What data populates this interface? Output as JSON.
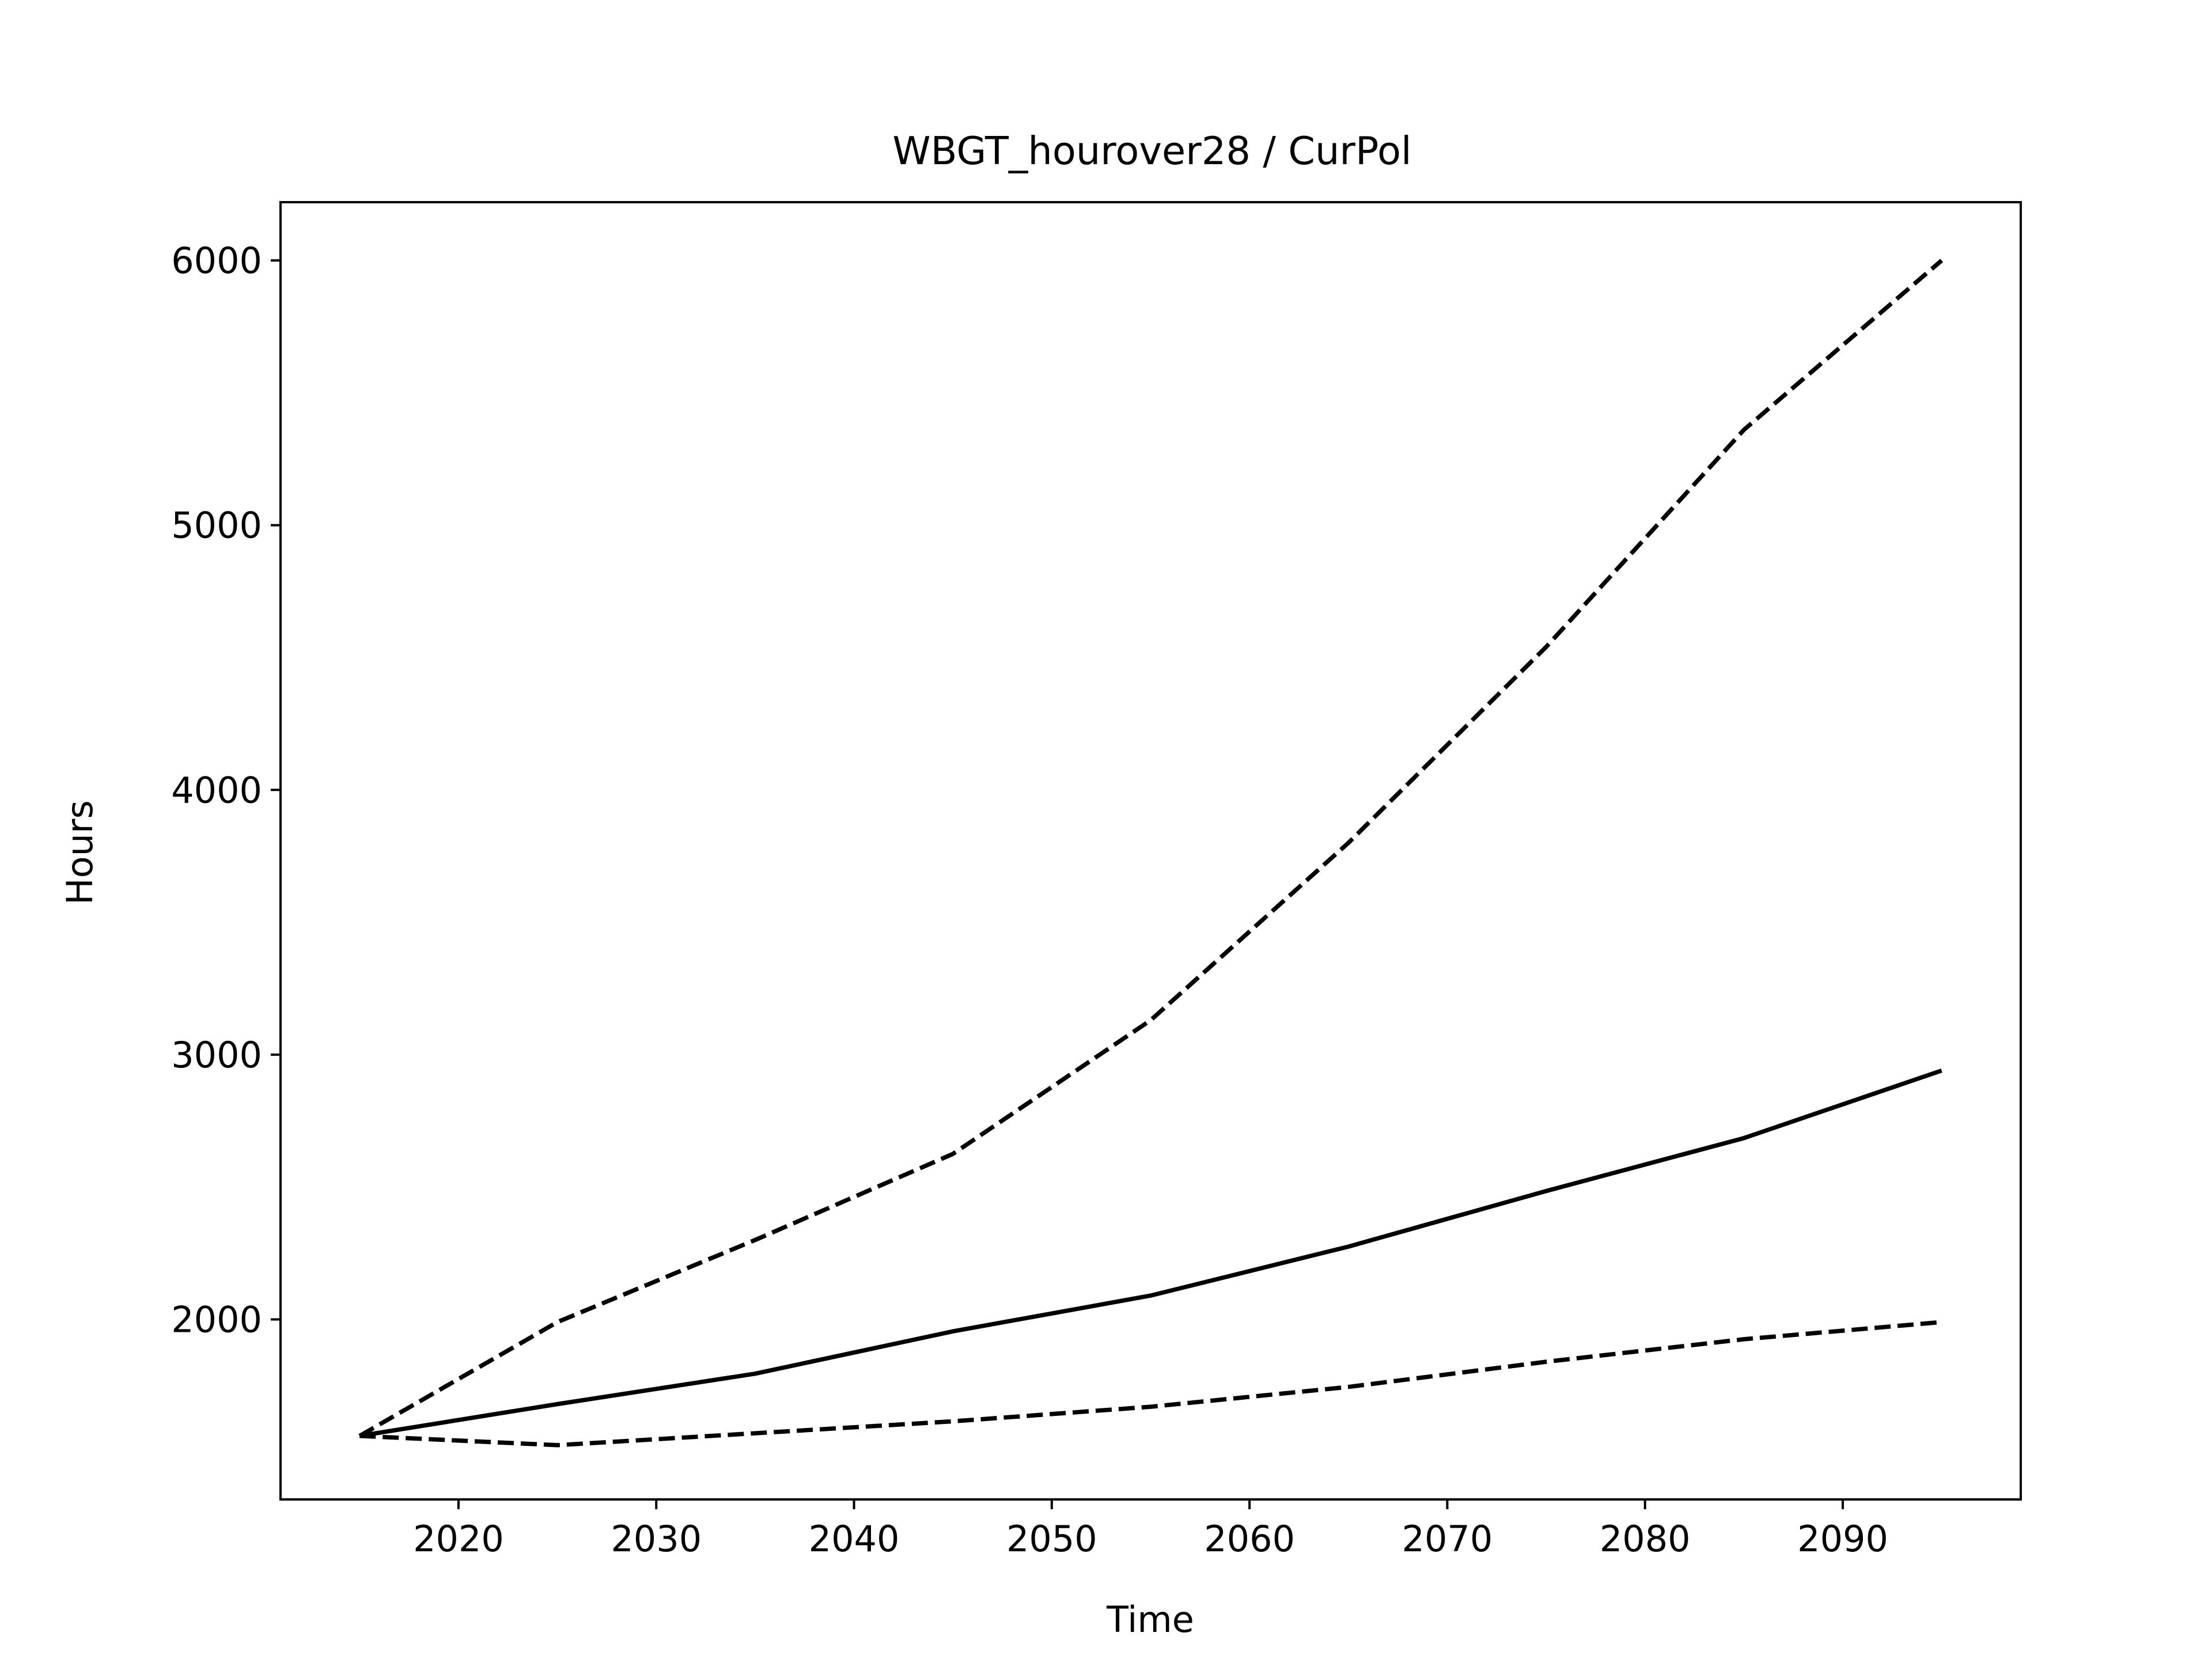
{
  "chart_data": {
    "type": "line",
    "title": "WBGT_hourover28 / CurPol",
    "xlabel": "Time",
    "ylabel": "Hours",
    "xlim": [
      2011,
      2099
    ],
    "ylim": [
      1320,
      6220
    ],
    "x_ticks": [
      2020,
      2030,
      2040,
      2050,
      2060,
      2070,
      2080,
      2090
    ],
    "y_ticks": [
      2000,
      3000,
      4000,
      5000,
      6000
    ],
    "grid": false,
    "x": [
      2015,
      2025,
      2035,
      2045,
      2055,
      2065,
      2075,
      2085,
      2095
    ],
    "series": [
      {
        "style": "solid",
        "color": "#000000",
        "values": [
          1560,
          1680,
          1795,
          1955,
          2090,
          2275,
          2485,
          2685,
          2940
        ]
      },
      {
        "style": "dashed",
        "color": "#000000",
        "values": [
          1560,
          1990,
          2300,
          2625,
          3130,
          3800,
          4540,
          5360,
          6000
        ]
      },
      {
        "style": "dashed",
        "color": "#000000",
        "values": [
          1560,
          1525,
          1570,
          1615,
          1670,
          1745,
          1840,
          1925,
          1990
        ]
      }
    ]
  }
}
